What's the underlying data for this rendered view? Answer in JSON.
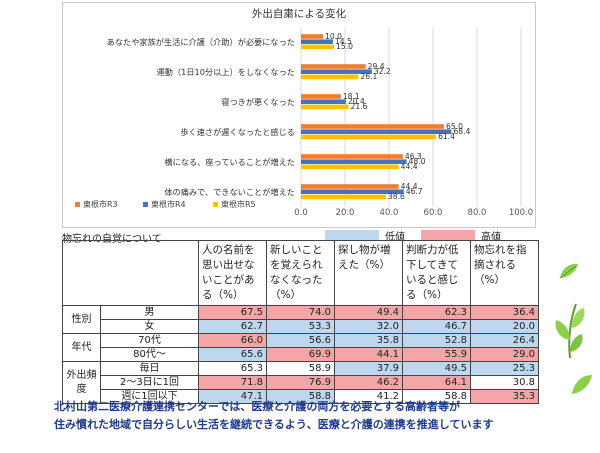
{
  "chart_data": {
    "type": "bar",
    "orientation": "horizontal",
    "title": "外出自粛による変化",
    "categories": [
      "あなたや家族が生活に介護（介助）が必要になった",
      "運動（1日10分以上）をしなくなった",
      "寝つきが悪くなった",
      "歩く速さが遅くなったと感じる",
      "横になる、座っていることが増えた",
      "体の痛みで、できないことが増えた"
    ],
    "series": [
      {
        "name": "東根市R3",
        "color": "#ed7d31",
        "values": [
          10.0,
          29.4,
          18.1,
          65.0,
          46.3,
          44.4
        ]
      },
      {
        "name": "東根市R4",
        "color": "#4472c4",
        "values": [
          14.5,
          32.2,
          20.4,
          68.4,
          48.0,
          46.7
        ]
      },
      {
        "name": "東根市R5",
        "color": "#ffc000",
        "values": [
          15.0,
          26.1,
          21.6,
          61.4,
          44.4,
          38.6
        ]
      }
    ],
    "value_labels": [
      [
        "10.0",
        "14.5",
        "15.0"
      ],
      [
        "29.4",
        "32.2",
        "26.1"
      ],
      [
        "18.1",
        "20.4",
        "21.6"
      ],
      [
        "65.0",
        "68.4",
        "61.4"
      ],
      [
        "46.3",
        "48.0",
        "44.4"
      ],
      [
        "44.4",
        "46.7",
        "38.6"
      ]
    ],
    "xlim": [
      0,
      100
    ],
    "xticks": [
      "0.0",
      "20.0",
      "40.0",
      "60.0",
      "80.0",
      "100.0"
    ],
    "legend_position": "bottom-left"
  },
  "table": {
    "section_title": "物忘れの自覚について",
    "legend": {
      "low": "低値",
      "high": "高値"
    },
    "headers": [
      "人の名前を思い出せないことがある（%）",
      "新しいことを覚えられなくなった（%）",
      "探し物が増えた（%）",
      "判断力が低下してきていると感じる（%）",
      "物忘れを指摘される（%）"
    ],
    "groups": [
      {
        "label": "性別",
        "rows": [
          {
            "label": "男",
            "values": [
              "67.5",
              "74.0",
              "49.4",
              "62.3",
              "36.4"
            ],
            "levels": [
              "high",
              "high",
              "high",
              "high",
              "high"
            ]
          },
          {
            "label": "女",
            "values": [
              "62.7",
              "53.3",
              "32.0",
              "46.7",
              "20.0"
            ],
            "levels": [
              "low",
              "low",
              "low",
              "low",
              "low"
            ]
          }
        ]
      },
      {
        "label": "年代",
        "rows": [
          {
            "label": "70代",
            "values": [
              "66.0",
              "56.6",
              "35.8",
              "52.8",
              "26.4"
            ],
            "levels": [
              "high",
              "low",
              "low",
              "low",
              "low"
            ]
          },
          {
            "label": "80代〜",
            "values": [
              "65.6",
              "69.9",
              "44.1",
              "55.9",
              "29.0"
            ],
            "levels": [
              "low",
              "high",
              "high",
              "high",
              "high"
            ]
          }
        ]
      },
      {
        "label": "外出頻度",
        "rows": [
          {
            "label": "毎日",
            "values": [
              "65.3",
              "58.9",
              "37.9",
              "49.5",
              "25.3"
            ],
            "levels": [
              "",
              "",
              "low",
              "low",
              "low"
            ]
          },
          {
            "label": "2〜3日に1回",
            "values": [
              "71.8",
              "76.9",
              "46.2",
              "64.1",
              "30.8"
            ],
            "levels": [
              "high",
              "high",
              "high",
              "high",
              ""
            ]
          },
          {
            "label": "週に1回以下",
            "values": [
              "47.1",
              "58.8",
              "41.2",
              "58.8",
              "35.3"
            ],
            "levels": [
              "low",
              "low",
              "",
              "",
              "high"
            ]
          }
        ]
      }
    ]
  },
  "footer": {
    "line1": "北村山第二医療介護連携センターでは、医療と介護の両方を必要とする高齢者等が",
    "line2": "住み慣れた地域で自分らしい生活を継続できるよう、医療と介護の連携を推進しています"
  },
  "colors": {
    "low": "#bdd7ee",
    "high": "#f4a6a6",
    "footer_text": "#1f3b8c"
  }
}
